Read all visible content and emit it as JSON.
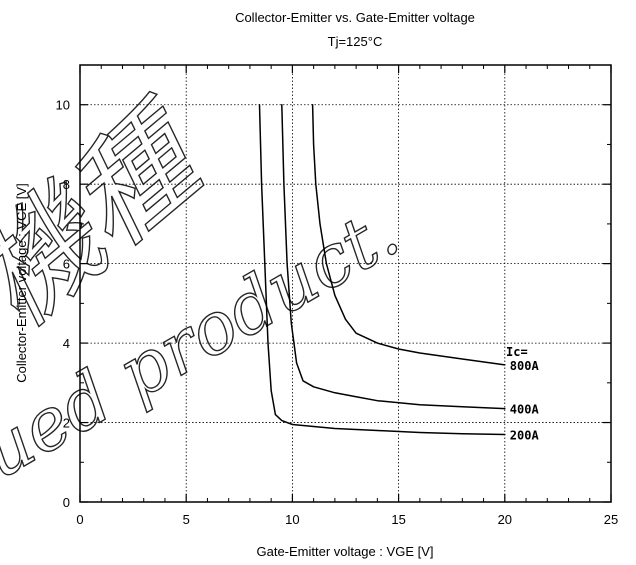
{
  "chart_data": {
    "type": "line",
    "title": "Collector-Emitter  vs.  Gate-Emitter  voltage",
    "subtitle": "Tj=125°C",
    "xlabel": "Gate-Emitter  voltage  : VGE [V]",
    "ylabel": "Collector-Emitter  voltage  :  VCE [V]",
    "xlim": [
      0,
      25
    ],
    "ylim": [
      0,
      11
    ],
    "xticks": [
      "0",
      "5",
      "10",
      "15",
      "20",
      "25"
    ],
    "yticks": [
      "0",
      "2",
      "4",
      "6",
      "8",
      "10"
    ],
    "grid": true,
    "legend_title": "Ic=",
    "series": [
      {
        "name": "200A",
        "x": [
          8.45,
          8.55,
          8.7,
          8.85,
          9.0,
          9.2,
          9.5,
          10.0,
          11.0,
          12.0,
          14.0,
          16.0,
          18.0,
          20.0
        ],
        "y": [
          10.0,
          8.0,
          6.0,
          4.0,
          2.8,
          2.2,
          2.05,
          1.95,
          1.9,
          1.85,
          1.8,
          1.75,
          1.72,
          1.7
        ]
      },
      {
        "name": "400A",
        "x": [
          9.5,
          9.6,
          9.75,
          9.95,
          10.2,
          10.5,
          11.0,
          12.0,
          13.0,
          14.0,
          16.0,
          18.0,
          20.0
        ],
        "y": [
          10.0,
          8.0,
          6.0,
          4.5,
          3.5,
          3.05,
          2.9,
          2.75,
          2.65,
          2.55,
          2.45,
          2.4,
          2.35
        ]
      },
      {
        "name": "800A",
        "x": [
          10.95,
          11.0,
          11.1,
          11.3,
          11.6,
          12.0,
          12.5,
          13.0,
          14.0,
          15.0,
          16.0,
          18.0,
          20.0
        ],
        "y": [
          10.0,
          9.0,
          8.0,
          7.0,
          6.0,
          5.2,
          4.6,
          4.25,
          4.0,
          3.85,
          3.75,
          3.6,
          3.45
        ]
      }
    ],
    "watermark_text": [
      "機種",
      "ued product."
    ]
  }
}
